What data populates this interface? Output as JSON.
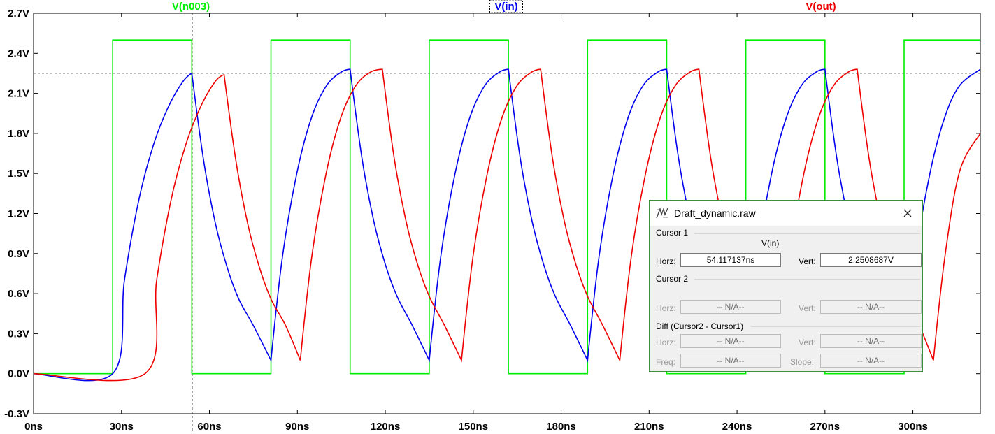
{
  "chart_data": {
    "type": "line",
    "title": "",
    "xlabel": "",
    "ylabel": "",
    "xlim": [
      0,
      323
    ],
    "ylim": [
      -0.3,
      2.7
    ],
    "x_ticks": [
      "0ns",
      "30ns",
      "60ns",
      "90ns",
      "120ns",
      "150ns",
      "180ns",
      "210ns",
      "240ns",
      "270ns",
      "300ns"
    ],
    "y_ticks": [
      "-0.3V",
      "0.0V",
      "0.3V",
      "0.6V",
      "0.9V",
      "1.2V",
      "1.5V",
      "1.8V",
      "2.1V",
      "2.4V",
      "2.7V"
    ],
    "grid": false,
    "legend": "top",
    "series": [
      {
        "name": "V(n003)",
        "color": "#00ee00",
        "x": [
          0,
          27,
          27,
          54,
          54,
          81,
          81,
          108,
          108,
          135,
          135,
          162,
          162,
          189,
          189,
          216,
          216,
          243,
          243,
          270,
          270,
          297,
          297,
          323
        ],
        "y": [
          0,
          0,
          2.5,
          2.5,
          0,
          0,
          2.5,
          2.5,
          0,
          0,
          2.5,
          2.5,
          0,
          0,
          2.5,
          2.5,
          0,
          0,
          2.5,
          2.5,
          0,
          0,
          2.5,
          2.5
        ]
      },
      {
        "name": "V(in)",
        "color": "#0000ee",
        "x": [
          0,
          27,
          31,
          36,
          41,
          46,
          51,
          54,
          58,
          62,
          66,
          70,
          75,
          81,
          85,
          90,
          95,
          100,
          105,
          108,
          112,
          116,
          120,
          124,
          129,
          135,
          139,
          144,
          149,
          154,
          159,
          162,
          166,
          170,
          174,
          178,
          183,
          189,
          193,
          198,
          203,
          208,
          213,
          216,
          220,
          224,
          228,
          232,
          237,
          243,
          247,
          252,
          257,
          262,
          267,
          270,
          274,
          278,
          282,
          286,
          291,
          297,
          301,
          306,
          311,
          316,
          323
        ],
        "y": [
          0,
          0,
          0.7,
          1.31,
          1.72,
          2.0,
          2.19,
          2.25,
          1.6,
          1.13,
          0.8,
          0.56,
          0.36,
          0.1,
          0.89,
          1.52,
          1.93,
          2.16,
          2.26,
          2.28,
          1.62,
          1.15,
          0.82,
          0.58,
          0.37,
          0.1,
          0.89,
          1.52,
          1.93,
          2.16,
          2.26,
          2.28,
          1.62,
          1.15,
          0.82,
          0.58,
          0.37,
          0.1,
          0.89,
          1.52,
          1.93,
          2.16,
          2.26,
          2.28,
          1.62,
          1.15,
          0.82,
          0.58,
          0.37,
          0.1,
          0.89,
          1.52,
          1.93,
          2.16,
          2.26,
          2.28,
          1.62,
          1.15,
          0.82,
          0.58,
          0.37,
          0.1,
          0.89,
          1.52,
          1.93,
          2.16,
          2.28
        ]
      },
      {
        "name": "V(out)",
        "color": "#ee0000",
        "x": [
          0,
          38,
          42,
          47,
          52,
          57,
          62,
          65,
          69,
          73,
          77,
          81,
          86,
          91,
          95,
          100,
          105,
          110,
          115,
          119,
          123,
          127,
          131,
          135,
          140,
          146,
          150,
          155,
          160,
          165,
          170,
          173,
          177,
          181,
          185,
          189,
          194,
          200,
          204,
          209,
          214,
          219,
          224,
          227,
          231,
          235,
          239,
          243,
          248,
          254,
          258,
          263,
          268,
          273,
          278,
          281,
          285,
          289,
          293,
          297,
          302,
          307,
          311,
          316,
          323
        ],
        "y": [
          0,
          0,
          0.7,
          1.31,
          1.72,
          2.0,
          2.19,
          2.24,
          1.6,
          1.13,
          0.8,
          0.56,
          0.36,
          0.1,
          0.89,
          1.52,
          1.93,
          2.16,
          2.26,
          2.28,
          1.62,
          1.15,
          0.82,
          0.58,
          0.37,
          0.1,
          0.89,
          1.52,
          1.93,
          2.16,
          2.26,
          2.28,
          1.62,
          1.15,
          0.82,
          0.58,
          0.37,
          0.1,
          0.89,
          1.52,
          1.93,
          2.16,
          2.26,
          2.28,
          1.62,
          1.15,
          0.82,
          0.58,
          0.37,
          0.1,
          0.89,
          1.52,
          1.93,
          2.16,
          2.26,
          2.28,
          1.62,
          1.15,
          0.82,
          0.58,
          0.37,
          0.1,
          0.89,
          1.52,
          1.8
        ]
      }
    ],
    "cursor": {
      "x": 54.117137,
      "y": 2.2508687
    }
  },
  "dialog": {
    "title": "Draft_dynamic.raw",
    "cursor1_label": "Cursor 1",
    "trace_name": "V(in)",
    "horz_label": "Horz:",
    "vert_label": "Vert:",
    "cursor1_horz": "54.117137ns",
    "cursor1_vert": "2.2508687V",
    "cursor2_label": "Cursor 2",
    "na": "-- N/A--",
    "diff_label": "Diff (Cursor2 - Cursor1)",
    "freq_label": "Freq:",
    "slope_label": "Slope:"
  }
}
